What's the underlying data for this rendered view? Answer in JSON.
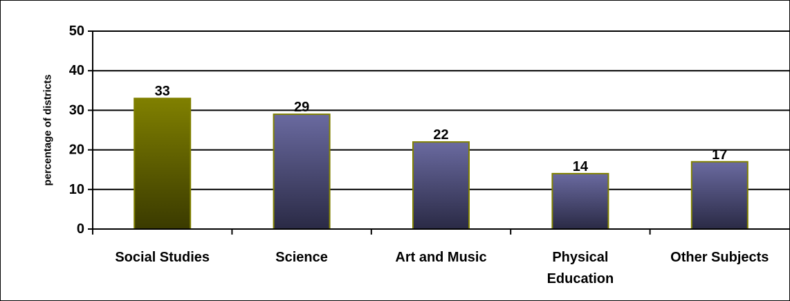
{
  "chart_data": {
    "type": "bar",
    "title": "",
    "xlabel": "",
    "ylabel": "percentage of districts",
    "ylim": [
      0,
      50
    ],
    "yticks": [
      0,
      10,
      20,
      30,
      40,
      50
    ],
    "grid": true,
    "legend": "none",
    "categories": [
      [
        "Social Studies"
      ],
      [
        "Science"
      ],
      [
        "Art and Music"
      ],
      [
        "Physical",
        "Education"
      ],
      [
        "Other Subjects"
      ]
    ],
    "values": [
      33,
      29,
      22,
      14,
      17
    ],
    "bar_styles": [
      "highlight",
      "normal",
      "normal",
      "normal",
      "normal"
    ],
    "data_labels": [
      "33",
      "29",
      "22",
      "14",
      "17"
    ]
  },
  "colors": {
    "highlight_top": "#808000",
    "highlight_bottom": "#3a3a00",
    "normal_top": "#6a6aa0",
    "normal_bottom": "#2a2a45",
    "bar_border": "#808000",
    "grid": "#000000"
  }
}
